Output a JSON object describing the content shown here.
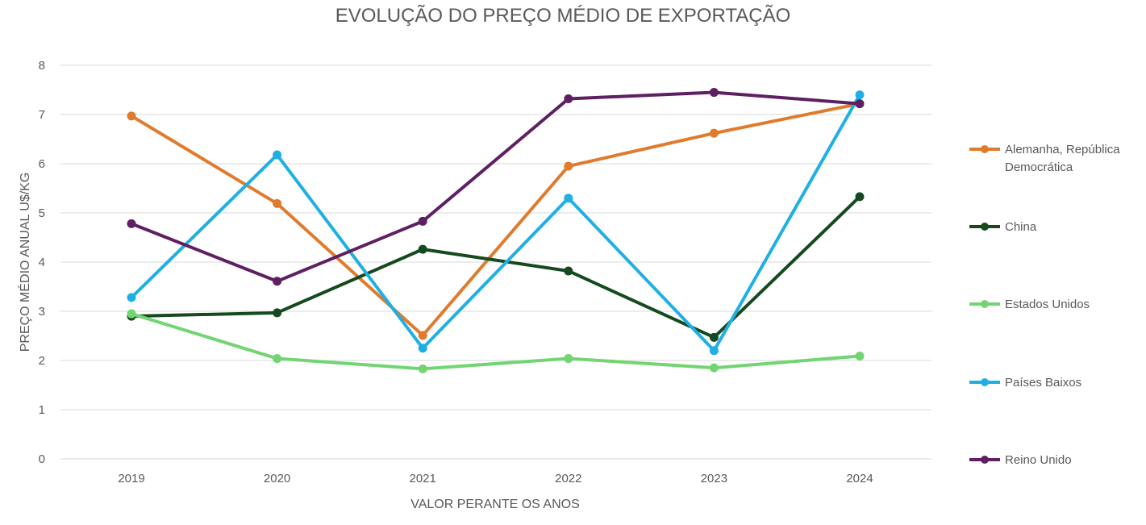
{
  "chart_data": {
    "type": "line",
    "title": "EVOLUÇÃO DO PREÇO MÉDIO DE EXPORTAÇÃO",
    "xlabel": "VALOR PERANTE OS ANOS",
    "ylabel": "PREÇO MÉDIO ANUAL U$/KG",
    "ylim": [
      0,
      8
    ],
    "yticks": [
      "0",
      "1",
      "2",
      "3",
      "4",
      "5",
      "6",
      "7",
      "8"
    ],
    "categories": [
      "2019",
      "2020",
      "2021",
      "2022",
      "2023",
      "2024"
    ],
    "grid": true,
    "legend_position": "right",
    "series": [
      {
        "name": "Alemanha, República Democrática",
        "legend_lines": [
          "Alemanha, República",
          "Democrática"
        ],
        "color": "#e07b2e",
        "values": [
          6.97,
          5.19,
          2.51,
          5.95,
          6.62,
          7.22
        ]
      },
      {
        "name": "China",
        "legend_lines": [
          "China"
        ],
        "color": "#154a1f",
        "values": [
          2.9,
          2.97,
          4.26,
          3.82,
          2.47,
          5.33
        ]
      },
      {
        "name": "Estados Unidos",
        "legend_lines": [
          "Estados Unidos"
        ],
        "color": "#72d572",
        "values": [
          2.95,
          2.04,
          1.83,
          2.04,
          1.85,
          2.09
        ]
      },
      {
        "name": "Países Baixos",
        "legend_lines": [
          "Países Baixos"
        ],
        "color": "#1fb0e3",
        "values": [
          3.28,
          6.18,
          2.25,
          5.3,
          2.2,
          7.4
        ]
      },
      {
        "name": "Reino Unido",
        "legend_lines": [
          "Reino Unido"
        ],
        "color": "#5e1f63",
        "values": [
          4.78,
          3.61,
          4.83,
          7.32,
          7.45,
          7.22
        ]
      }
    ]
  }
}
